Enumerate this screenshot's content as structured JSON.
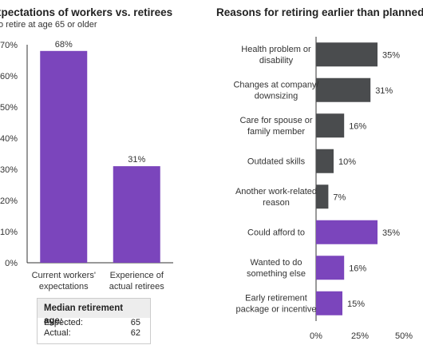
{
  "left_chart": {
    "title": "xpectations of workers vs. retirees",
    "subtitle": "o retire at age 65 or older"
  },
  "right_chart": {
    "title": "Reasons for retiring earlier than planned"
  },
  "median_box": {
    "heading": "Median retirement age:",
    "rows": [
      {
        "label": "Expected:",
        "value": "65"
      },
      {
        "label": "Actual:",
        "value": "62"
      }
    ]
  },
  "colors": {
    "purple": "#7b45bc",
    "gray": "#4a4c4e",
    "axis": "#333333",
    "text": "#333333"
  },
  "chart_data": [
    {
      "type": "bar",
      "title": "xpectations of workers vs. retirees",
      "subtitle": "o retire at age 65 or older",
      "categories": [
        [
          "Current workers'",
          "expectations"
        ],
        [
          "Experience of",
          "actual retirees"
        ]
      ],
      "values": [
        68,
        31
      ],
      "value_labels": [
        "68%",
        "31%"
      ],
      "ylim": [
        0,
        70
      ],
      "yticks": [
        0,
        10,
        20,
        30,
        40,
        50,
        60,
        70
      ],
      "ytick_labels": [
        "0%",
        "10%",
        "20%",
        "30%",
        "40%",
        "50%",
        "60%",
        "70%"
      ],
      "grid": false,
      "bar_color": "purple"
    },
    {
      "type": "bar",
      "orientation": "horizontal",
      "title": "Reasons for retiring earlier than planned",
      "categories": [
        [
          "Health problem or",
          "disability"
        ],
        [
          "Changes at company/",
          "downsizing"
        ],
        [
          "Care for spouse or",
          "family member"
        ],
        [
          "Outdated skills"
        ],
        [
          "Another work-related",
          "reason"
        ],
        [
          "Could afford to"
        ],
        [
          "Wanted to do",
          "something else"
        ],
        [
          "Early retirement",
          "package or incentive"
        ]
      ],
      "values": [
        35,
        31,
        16,
        10,
        7,
        35,
        16,
        15
      ],
      "value_labels": [
        "35%",
        "31%",
        "16%",
        "10%",
        "7%",
        "35%",
        "16%",
        "15%"
      ],
      "bar_colors": [
        "gray",
        "gray",
        "gray",
        "gray",
        "gray",
        "purple",
        "purple",
        "purple"
      ],
      "xlim": [
        0,
        50
      ],
      "xticks": [
        0,
        25,
        50
      ],
      "xtick_labels": [
        "0%",
        "25%",
        "50%"
      ],
      "grid": false
    }
  ]
}
